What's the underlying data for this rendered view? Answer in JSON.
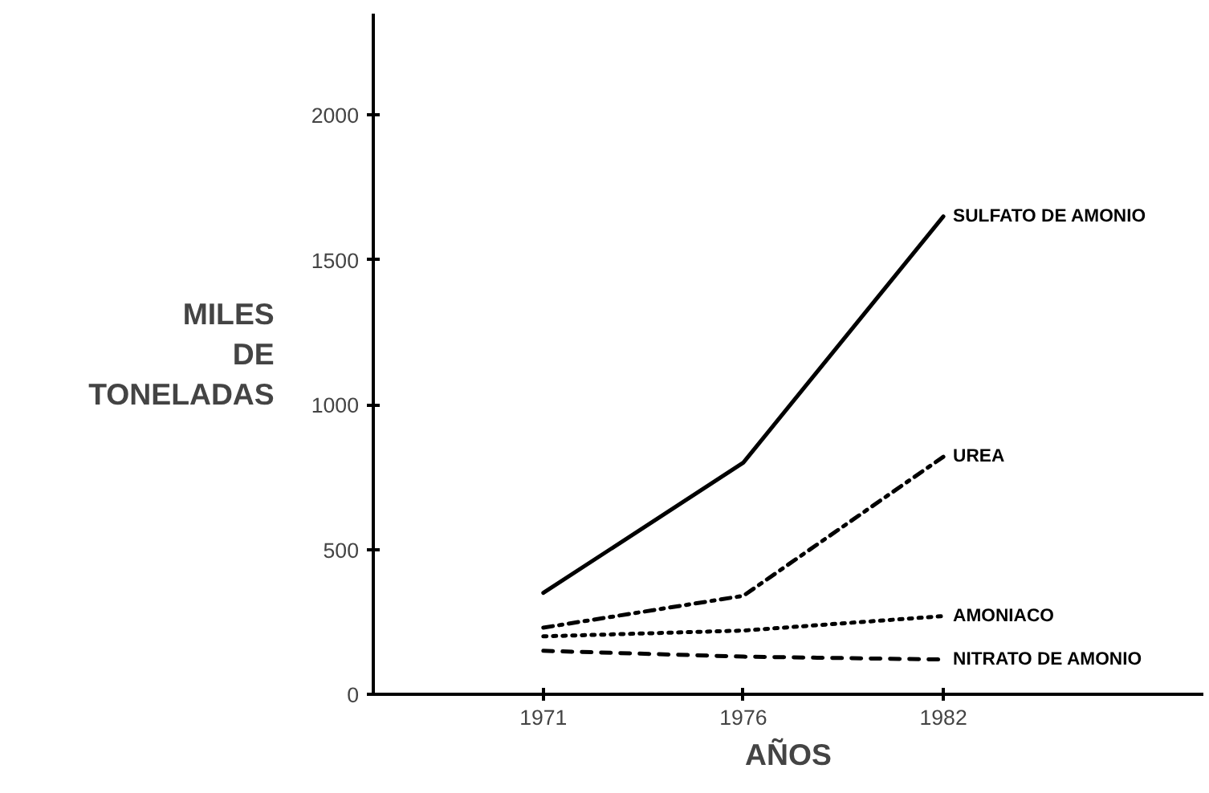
{
  "chart_data": {
    "type": "line",
    "xlabel": "AÑOS",
    "ylabel": "MILES DE TONELADAS",
    "categories": [
      "1971",
      "1976",
      "1982"
    ],
    "ylim": [
      0,
      2350
    ],
    "yticks": [
      0,
      500,
      1000,
      1500,
      2000
    ],
    "grid": false,
    "marker": "none",
    "series": [
      {
        "name": "SULFATO DE AMONIO",
        "color": "#000000",
        "line_style": "solid",
        "values": [
          350,
          800,
          1650
        ]
      },
      {
        "name": "UREA",
        "color": "#000000",
        "line_style": "dashdot",
        "values": [
          230,
          340,
          820
        ]
      },
      {
        "name": "AMONIACO",
        "color": "#000000",
        "line_style": "dotted",
        "values": [
          200,
          220,
          270
        ]
      },
      {
        "name": "NITRATO DE AMONIO",
        "color": "#000000",
        "line_style": "dashed",
        "values": [
          150,
          130,
          120
        ]
      }
    ]
  }
}
